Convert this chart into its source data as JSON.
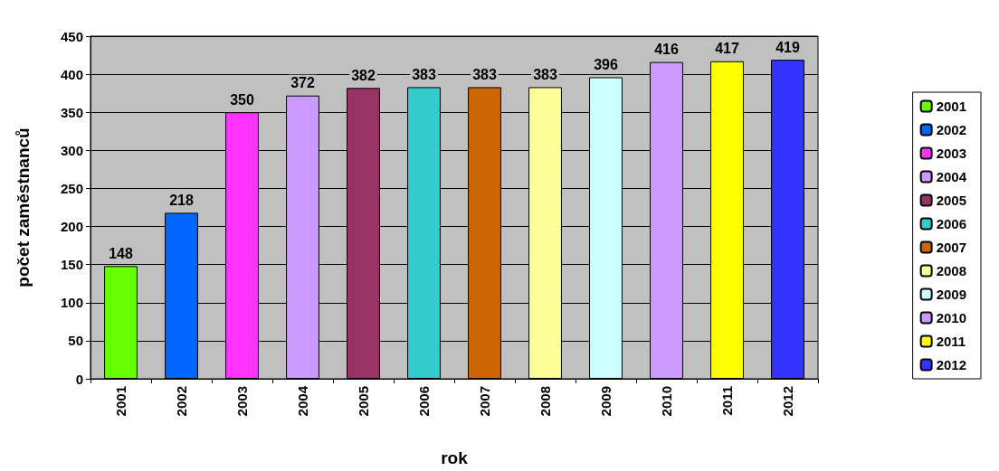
{
  "chart_data": {
    "type": "bar",
    "xlabel": "rok",
    "ylabel": "počet zaměstnanců",
    "categories": [
      "2001",
      "2002",
      "2003",
      "2004",
      "2005",
      "2006",
      "2007",
      "2008",
      "2009",
      "2010",
      "2011",
      "2012"
    ],
    "series": [
      {
        "name": "2001",
        "color": "#66ff00",
        "values": [
          148,
          null,
          null,
          null,
          null,
          null,
          null,
          null,
          null,
          null,
          null,
          null
        ]
      },
      {
        "name": "2002",
        "color": "#0066ff",
        "values": [
          null,
          218,
          null,
          null,
          null,
          null,
          null,
          null,
          null,
          null,
          null,
          null
        ]
      },
      {
        "name": "2003",
        "color": "#ff33ff",
        "values": [
          null,
          null,
          350,
          null,
          null,
          null,
          null,
          null,
          null,
          null,
          null,
          null
        ]
      },
      {
        "name": "2004",
        "color": "#cc99ff",
        "values": [
          null,
          null,
          null,
          372,
          null,
          null,
          null,
          null,
          null,
          null,
          null,
          null
        ]
      },
      {
        "name": "2005",
        "color": "#993366",
        "values": [
          null,
          null,
          null,
          null,
          382,
          null,
          null,
          null,
          null,
          null,
          null,
          null
        ]
      },
      {
        "name": "2006",
        "color": "#33cccc",
        "values": [
          null,
          null,
          null,
          null,
          null,
          383,
          null,
          null,
          null,
          null,
          null,
          null
        ]
      },
      {
        "name": "2007",
        "color": "#cc6600",
        "values": [
          null,
          null,
          null,
          null,
          null,
          null,
          383,
          null,
          null,
          null,
          null,
          null
        ]
      },
      {
        "name": "2008",
        "color": "#ffff99",
        "values": [
          null,
          null,
          null,
          null,
          null,
          null,
          null,
          383,
          null,
          null,
          null,
          null
        ]
      },
      {
        "name": "2009",
        "color": "#ccffff",
        "values": [
          null,
          null,
          null,
          null,
          null,
          null,
          null,
          null,
          396,
          null,
          null,
          null
        ]
      },
      {
        "name": "2010",
        "color": "#cc99ff",
        "values": [
          null,
          null,
          null,
          null,
          null,
          null,
          null,
          null,
          null,
          416,
          null,
          null
        ]
      },
      {
        "name": "2011",
        "color": "#ffff00",
        "values": [
          null,
          null,
          null,
          null,
          null,
          null,
          null,
          null,
          null,
          null,
          417,
          null
        ]
      },
      {
        "name": "2012",
        "color": "#3333ff",
        "values": [
          null,
          null,
          null,
          null,
          null,
          null,
          null,
          null,
          null,
          null,
          null,
          419
        ]
      }
    ],
    "ylim": [
      0,
      450
    ],
    "yticks": [
      0,
      50,
      100,
      150,
      200,
      250,
      300,
      350,
      400,
      450
    ],
    "grid": "y",
    "legend": "right",
    "data_labels": true
  }
}
